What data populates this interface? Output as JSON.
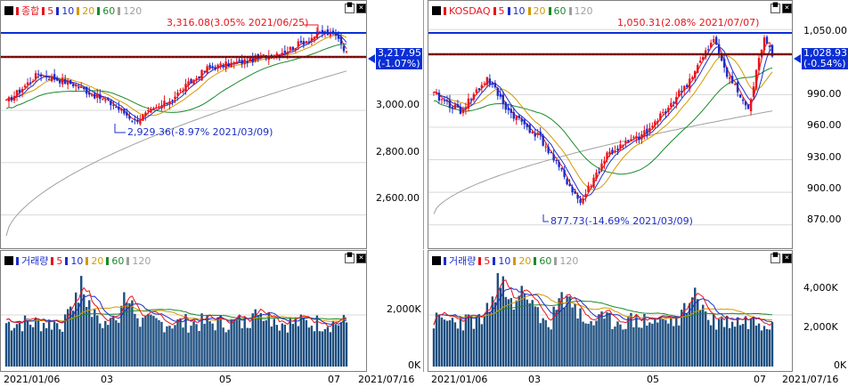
{
  "left": {
    "legend": {
      "name": "종합",
      "ma": [
        "5",
        "10",
        "20",
        "60",
        "120"
      ]
    },
    "price_ticks": [
      "3,000.00",
      "2,800.00",
      "2,600.00"
    ],
    "current": {
      "value": "3,217.95",
      "change": "(-1.07%)"
    },
    "high_annot": "3,316.08(3.05% 2021/06/25)",
    "low_annot": "2,929.36(-8.97% 2021/03/09)",
    "volume_legend": {
      "name": "거래량",
      "ma": [
        "5",
        "10",
        "20",
        "60",
        "120"
      ]
    },
    "volume_ticks": [
      "2,000K",
      "0K"
    ],
    "dates": [
      "2021/01/06",
      "03",
      "05",
      "07",
      "2021/07/16"
    ]
  },
  "right": {
    "legend": {
      "name": "KOSDAQ",
      "ma": [
        "5",
        "10",
        "20",
        "60",
        "120"
      ]
    },
    "price_ticks": [
      "1,050.00",
      "990.00",
      "960.00",
      "930.00",
      "900.00",
      "870.00"
    ],
    "current": {
      "value": "1,028.93",
      "change": "(-0.54%)"
    },
    "high_annot": "1,050.31(2.08% 2021/07/07)",
    "low_annot": "877.73(-14.69% 2021/03/09)",
    "volume_legend": {
      "name": "거래량",
      "ma": [
        "5",
        "10",
        "20",
        "60",
        "120"
      ]
    },
    "volume_ticks": [
      "4,000K",
      "2,000K",
      "0K"
    ],
    "dates": [
      "2021/01/06",
      "03",
      "05",
      "07",
      "2021/07/16"
    ]
  },
  "colors": {
    "up": "#e8141c",
    "down": "#1c2ecb",
    "ma5": "#e8141c",
    "ma10": "#1c2ecb",
    "ma20": "#d49a00",
    "ma60": "#1a8a2a",
    "ma120": "#a0a0a0",
    "accent": "#0b2fd6"
  },
  "chart_data": [
    {
      "type": "line",
      "title": "종합",
      "series": [
        {
          "name": "종합",
          "x": [
            "2021/01/06",
            "2021/03/09",
            "2021/06/25",
            "2021/07/16"
          ],
          "values": [
            3031.68,
            2929.36,
            3316.08,
            3217.95
          ]
        }
      ],
      "ylim": [
        2500,
        3350
      ]
    },
    {
      "type": "line",
      "title": "KOSDAQ",
      "series": [
        {
          "name": "KOSDAQ",
          "x": [
            "2021/01/06",
            "2021/03/09",
            "2021/07/07",
            "2021/07/16"
          ],
          "values": [
            981.4,
            877.73,
            1050.31,
            1028.93
          ]
        }
      ],
      "ylim": [
        855,
        1060
      ]
    }
  ]
}
